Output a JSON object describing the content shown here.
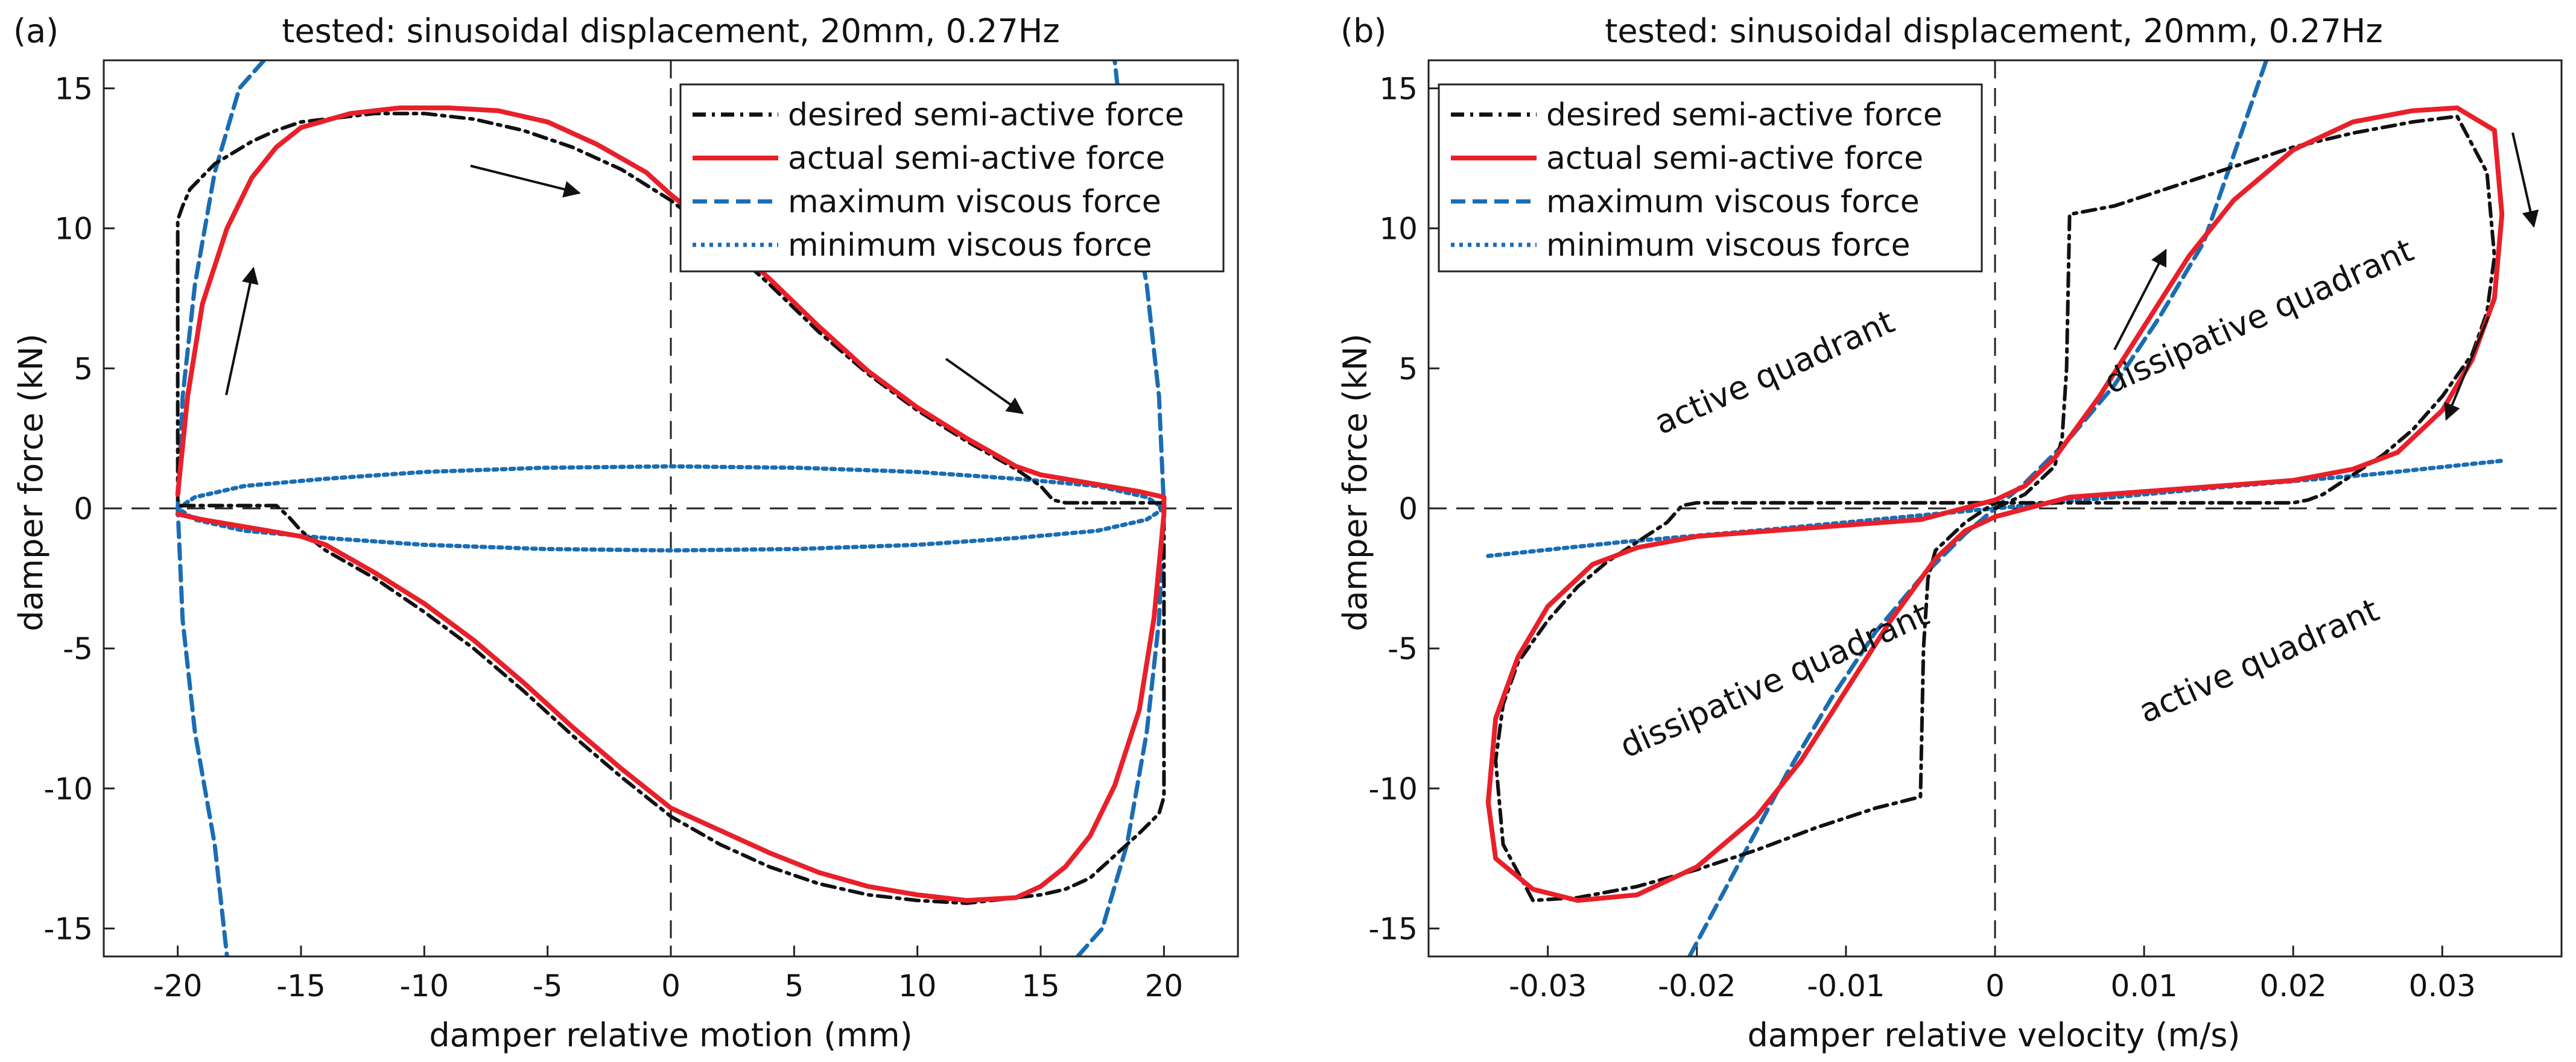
{
  "figure": {
    "panels": [
      {
        "label": "(a)",
        "title": "tested: sinusoidal displacement, 20mm, 0.27Hz",
        "xlabel": "damper relative motion (mm)",
        "ylabel": "damper force (kN)",
        "xlim": [
          -23,
          23
        ],
        "ylim": [
          -16,
          16
        ],
        "xticks": [
          -20,
          -15,
          -10,
          -5,
          0,
          5,
          10,
          15,
          20
        ],
        "xtick_labels": [
          "-20",
          "-15",
          "-10",
          "-5",
          "0",
          "5",
          "10",
          "15",
          "20"
        ],
        "yticks": [
          15,
          10,
          5,
          0,
          -5,
          -10,
          -15
        ],
        "ytick_labels": [
          "15",
          "10",
          "5",
          "0",
          "-5",
          "-10",
          "-15"
        ],
        "legend": [
          {
            "label": "desired semi-active force",
            "style": "dash-dot",
            "color": "#111111"
          },
          {
            "label": "actual semi-active force",
            "style": "solid",
            "color": "#e8202a"
          },
          {
            "label": "maximum viscous force",
            "style": "dashed",
            "color": "#1a6db3"
          },
          {
            "label": "minimum viscous force",
            "style": "dotted",
            "color": "#1a6db3"
          }
        ],
        "annotations": []
      },
      {
        "label": "(b)",
        "title": "tested: sinusoidal displacement, 20mm, 0.27Hz",
        "xlabel": "damper relative velocity (m/s)",
        "ylabel": "damper force (kN)",
        "xlim": [
          -0.038,
          0.038
        ],
        "ylim": [
          -16,
          16
        ],
        "xticks": [
          -0.03,
          -0.02,
          -0.01,
          0,
          0.01,
          0.02,
          0.03
        ],
        "xtick_labels": [
          "-0.03",
          "-0.02",
          "-0.01",
          "0",
          "0.01",
          "0.02",
          "0.03"
        ],
        "yticks": [
          15,
          10,
          5,
          0,
          -5,
          -10,
          -15
        ],
        "ytick_labels": [
          "15",
          "10",
          "5",
          "0",
          "-5",
          "-10",
          "-15"
        ],
        "legend": [
          {
            "label": "desired semi-active force",
            "style": "dash-dot",
            "color": "#111111"
          },
          {
            "label": "actual semi-active force",
            "style": "solid",
            "color": "#e8202a"
          },
          {
            "label": "maximum viscous force",
            "style": "dashed",
            "color": "#1a6db3"
          },
          {
            "label": "minimum viscous force",
            "style": "dotted",
            "color": "#1a6db3"
          }
        ],
        "annotations": [
          {
            "text": "active quadrant",
            "at": [
              -0.0145,
              4.5
            ],
            "angle": 24
          },
          {
            "text": "dissipative quadrant",
            "at": [
              0.018,
              6.5
            ],
            "angle": 24
          },
          {
            "text": "dissipative quadrant",
            "at": [
              -0.0145,
              -6.5
            ],
            "angle": 24
          },
          {
            "text": "active quadrant",
            "at": [
              0.018,
              -5.8
            ],
            "angle": 24
          }
        ]
      }
    ]
  },
  "chart_data": [
    {
      "type": "line",
      "title": "tested: sinusoidal displacement, 20mm, 0.27Hz",
      "xlabel": "damper relative motion (mm)",
      "ylabel": "damper force (kN)",
      "xlim": [
        -23,
        23
      ],
      "ylim": [
        -16,
        16
      ],
      "series": [
        {
          "name": "desired semi-active force",
          "x": [
            -20,
            -20,
            -19.8,
            -19.5,
            -18.5,
            -17,
            -16,
            -15,
            -14,
            -12,
            -10,
            -8,
            -6,
            -4,
            -2,
            0,
            2,
            4,
            6,
            8,
            10,
            12,
            14,
            15,
            15.5,
            16,
            17,
            18,
            19,
            20,
            20,
            20,
            19.8,
            19,
            18,
            17,
            16,
            15,
            14,
            12,
            10,
            8,
            6,
            4,
            2,
            0,
            -2,
            -4,
            -6,
            -8,
            -10,
            -12,
            -14,
            -15,
            -15.5,
            -16,
            -17,
            -18,
            -19,
            -20
          ],
          "y": [
            0.3,
            10.3,
            10.8,
            11.4,
            12.3,
            13.1,
            13.5,
            13.8,
            13.9,
            14.1,
            14.1,
            13.9,
            13.5,
            12.9,
            12.1,
            11.0,
            9.6,
            8.0,
            6.3,
            4.8,
            3.5,
            2.4,
            1.4,
            0.8,
            0.3,
            0.2,
            0.2,
            0.2,
            0.2,
            0.2,
            0,
            -10.3,
            -10.9,
            -11.6,
            -12.4,
            -13.2,
            -13.6,
            -13.8,
            -13.9,
            -14.1,
            -14.0,
            -13.8,
            -13.4,
            -12.8,
            -12.0,
            -11.0,
            -9.6,
            -8.1,
            -6.5,
            -5.0,
            -3.7,
            -2.5,
            -1.5,
            -0.8,
            -0.3,
            0.1,
            0.1,
            0.1,
            0.1,
            0.1
          ]
        },
        {
          "name": "actual semi-active force",
          "x": [
            -20,
            -19.6,
            -19,
            -18,
            -17,
            -16,
            -15,
            -13,
            -11,
            -9,
            -7,
            -5,
            -3,
            -1,
            0,
            2,
            4,
            6,
            8,
            10,
            12,
            14,
            15,
            17,
            19,
            20,
            20,
            19.6,
            19,
            18,
            17,
            16,
            15,
            14,
            12,
            10,
            8,
            6,
            4,
            2,
            0,
            -2,
            -4,
            -6,
            -8,
            -10,
            -12,
            -14,
            -15,
            -17,
            -19,
            -20
          ],
          "y": [
            0.5,
            4.0,
            7.3,
            10.0,
            11.8,
            12.9,
            13.6,
            14.1,
            14.3,
            14.3,
            14.2,
            13.8,
            13.0,
            12.0,
            11.2,
            9.8,
            8.2,
            6.5,
            4.9,
            3.6,
            2.5,
            1.5,
            1.2,
            0.9,
            0.6,
            0.4,
            -0.2,
            -3.9,
            -7.2,
            -9.9,
            -11.7,
            -12.8,
            -13.5,
            -13.9,
            -14.0,
            -13.8,
            -13.5,
            -13.0,
            -12.3,
            -11.5,
            -10.7,
            -9.3,
            -7.8,
            -6.2,
            -4.7,
            -3.4,
            -2.3,
            -1.3,
            -1.0,
            -0.7,
            -0.4,
            -0.2
          ]
        },
        {
          "name": "maximum viscous force",
          "x": [
            -16.5,
            -17.5,
            -18.5,
            -19.3,
            -19.8,
            -20,
            -19.8,
            -19.3,
            -18.5,
            -18,
            16.5,
            17.5,
            18.5,
            19.3,
            19.8,
            20,
            19.8,
            19.3,
            18.5,
            18
          ],
          "y": [
            16,
            15,
            12,
            8,
            4,
            0,
            -4,
            -8,
            -12,
            -16,
            -16,
            -15,
            -12,
            -8,
            -4,
            0,
            4,
            8,
            12,
            16
          ]
        },
        {
          "name": "minimum viscous force",
          "x": [
            -20,
            -19.3,
            -17.3,
            -14.1,
            -10,
            -5.2,
            0,
            5.2,
            10,
            14.1,
            17.3,
            19.3,
            20,
            19.3,
            17.3,
            14.1,
            10,
            5.2,
            0,
            -5.2,
            -10,
            -14.1,
            -17.3,
            -19.3,
            -20
          ],
          "y": [
            0,
            0.4,
            0.8,
            1.05,
            1.3,
            1.45,
            1.5,
            1.45,
            1.3,
            1.05,
            0.8,
            0.4,
            0,
            -0.4,
            -0.8,
            -1.05,
            -1.3,
            -1.45,
            -1.5,
            -1.45,
            -1.3,
            -1.05,
            -0.8,
            -0.4,
            0
          ]
        }
      ]
    },
    {
      "type": "line",
      "title": "tested: sinusoidal displacement, 20mm, 0.27Hz",
      "xlabel": "damper relative velocity (m/s)",
      "ylabel": "damper force (kN)",
      "xlim": [
        -0.038,
        0.038
      ],
      "ylim": [
        -16,
        16
      ],
      "series": [
        {
          "name": "desired semi-active force",
          "x": [
            0,
            0.002,
            0.004,
            0.0045,
            0.0048,
            0.005,
            0.008,
            0.012,
            0.016,
            0.02,
            0.024,
            0.028,
            0.031,
            0.033,
            0.0335,
            0.033,
            0.032,
            0.03,
            0.028,
            0.026,
            0.024,
            0.022,
            0.021,
            0.02,
            0.015,
            0.01,
            0.005,
            0,
            -0.002,
            -0.004,
            -0.0045,
            -0.0048,
            -0.005,
            -0.008,
            -0.012,
            -0.016,
            -0.02,
            -0.024,
            -0.028,
            -0.031,
            -0.033,
            -0.0335,
            -0.033,
            -0.032,
            -0.03,
            -0.028,
            -0.026,
            -0.024,
            -0.022,
            -0.021,
            -0.02,
            -0.015,
            -0.01,
            -0.005,
            0
          ],
          "y": [
            0,
            0.5,
            1.5,
            2.5,
            5.0,
            10.5,
            10.8,
            11.5,
            12.2,
            12.9,
            13.4,
            13.8,
            14.0,
            12.0,
            9.0,
            7.0,
            5.5,
            4.0,
            2.8,
            1.9,
            1.2,
            0.5,
            0.3,
            0.2,
            0.2,
            0.2,
            0.2,
            0.2,
            -0.5,
            -1.5,
            -2.5,
            -5.0,
            -10.3,
            -10.7,
            -11.4,
            -12.2,
            -12.9,
            -13.5,
            -13.9,
            -14.0,
            -12.0,
            -9.0,
            -7.0,
            -5.5,
            -4.0,
            -2.8,
            -1.9,
            -1.2,
            -0.5,
            0.1,
            0.2,
            0.2,
            0.2,
            0.2,
            0.2
          ]
        },
        {
          "name": "actual semi-active force",
          "x": [
            0,
            0.002,
            0.004,
            0.007,
            0.01,
            0.013,
            0.016,
            0.02,
            0.024,
            0.028,
            0.031,
            0.0335,
            0.034,
            0.0335,
            0.032,
            0.03,
            0.027,
            0.024,
            0.02,
            0.015,
            0.01,
            0.005,
            0,
            -0.002,
            -0.004,
            -0.007,
            -0.01,
            -0.013,
            -0.016,
            -0.02,
            -0.024,
            -0.028,
            -0.031,
            -0.0335,
            -0.034,
            -0.0335,
            -0.032,
            -0.03,
            -0.027,
            -0.024,
            -0.02,
            -0.015,
            -0.01,
            -0.005,
            0
          ],
          "y": [
            0.3,
            0.8,
            1.8,
            4.0,
            6.5,
            9.0,
            11.0,
            12.8,
            13.8,
            14.2,
            14.3,
            13.5,
            10.5,
            7.5,
            5.3,
            3.5,
            2.0,
            1.4,
            1.0,
            0.8,
            0.6,
            0.4,
            -0.3,
            -0.8,
            -1.8,
            -4.0,
            -6.5,
            -9.0,
            -11.0,
            -12.8,
            -13.8,
            -14.0,
            -13.6,
            -12.5,
            -10.5,
            -7.5,
            -5.3,
            -3.5,
            -2.0,
            -1.4,
            -1.0,
            -0.8,
            -0.6,
            -0.4,
            0.3
          ]
        },
        {
          "name": "maximum viscous force",
          "x": [
            -0.0205,
            -0.017,
            -0.014,
            -0.011,
            -0.008,
            -0.005,
            -0.002,
            0,
            0.002,
            0.005,
            0.008,
            0.011,
            0.014,
            0.0182
          ],
          "y": [
            -16,
            -12.5,
            -9.5,
            -6.8,
            -4.4,
            -2.5,
            -0.9,
            0,
            0.9,
            2.5,
            4.4,
            6.8,
            9.5,
            16
          ]
        },
        {
          "name": "minimum viscous force",
          "x": [
            -0.034,
            -0.025,
            -0.015,
            -0.005,
            0,
            0.005,
            0.015,
            0.025,
            0.034
          ],
          "y": [
            -1.7,
            -1.2,
            -0.75,
            -0.25,
            0,
            0.25,
            0.75,
            1.2,
            1.7
          ]
        }
      ]
    }
  ]
}
